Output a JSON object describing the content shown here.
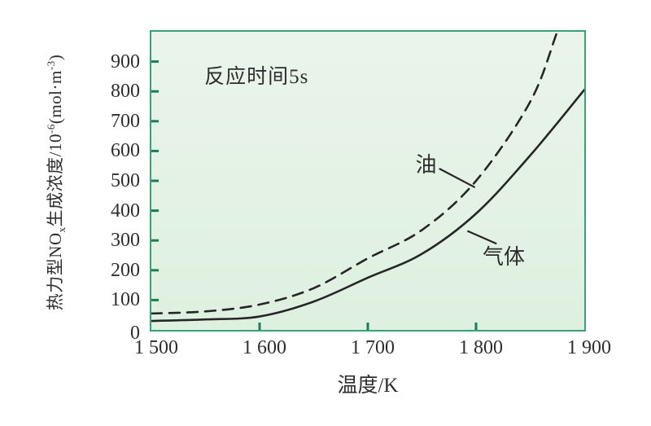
{
  "colors": {
    "page_bg": "#ffffff",
    "plot_bg_top": "#eaf4eb",
    "plot_bg_bottom": "#def0e0",
    "plot_border": "#38a273",
    "tick_mark": "#1e7d55",
    "curve": "#262626",
    "text": "#2e2e2e"
  },
  "chart_data": {
    "type": "line",
    "title": "",
    "annotation": "反应时间5s",
    "annotation_pos": [
      1549,
      905
    ],
    "xlabel": "温度/K",
    "ylabel": "热力型NOx生成浓度/10⁻⁶(mol·m⁻³)",
    "ylabel_parts": [
      {
        "t": "热力型NO"
      },
      {
        "t": "x",
        "s": "sub"
      },
      {
        "t": "生成浓度/10"
      },
      {
        "t": "-6",
        "s": "sup"
      },
      {
        "t": "(mol·m"
      },
      {
        "t": "-3",
        "s": "sup"
      },
      {
        "t": ")"
      }
    ],
    "xlim": [
      1500,
      1900
    ],
    "ylim": [
      0,
      1000
    ],
    "grid": false,
    "legend_position": "inline-labels",
    "xticks": [
      {
        "v": 1500,
        "label": "1 500"
      },
      {
        "v": 1600,
        "label": "1 600"
      },
      {
        "v": 1700,
        "label": "1 700"
      },
      {
        "v": 1800,
        "label": "1 800"
      },
      {
        "v": 1900,
        "label": "1 900"
      }
    ],
    "yticks": [
      {
        "v": 0,
        "label": "0"
      },
      {
        "v": 100,
        "label": "100"
      },
      {
        "v": 200,
        "label": "200"
      },
      {
        "v": 300,
        "label": "300"
      },
      {
        "v": 400,
        "label": "400"
      },
      {
        "v": 500,
        "label": "500"
      },
      {
        "v": 600,
        "label": "600"
      },
      {
        "v": 700,
        "label": "700"
      },
      {
        "v": 800,
        "label": "800"
      },
      {
        "v": 900,
        "label": "900"
      }
    ],
    "series": [
      {
        "name": "油",
        "line_style": "dashed",
        "points": [
          [
            1500,
            55
          ],
          [
            1550,
            62
          ],
          [
            1600,
            85
          ],
          [
            1650,
            140
          ],
          [
            1700,
            240
          ],
          [
            1750,
            335
          ],
          [
            1800,
            500
          ],
          [
            1850,
            765
          ],
          [
            1875,
            1000
          ],
          [
            1890,
            1150
          ]
        ]
      },
      {
        "name": "气体",
        "line_style": "solid",
        "points": [
          [
            1500,
            30
          ],
          [
            1550,
            35
          ],
          [
            1600,
            45
          ],
          [
            1650,
            95
          ],
          [
            1700,
            175
          ],
          [
            1750,
            255
          ],
          [
            1800,
            390
          ],
          [
            1850,
            585
          ],
          [
            1900,
            805
          ]
        ]
      }
    ],
    "series_labels": [
      {
        "text": "油",
        "series": "油",
        "pos": [
          1744,
          608
        ],
        "leader": [
          [
            1766,
            541
          ],
          [
            1799,
            478
          ]
        ]
      },
      {
        "text": "气体",
        "series": "气体",
        "pos": [
          1806,
          300
        ],
        "leader": [
          [
            1792,
            332
          ],
          [
            1819,
            289
          ]
        ]
      }
    ]
  }
}
